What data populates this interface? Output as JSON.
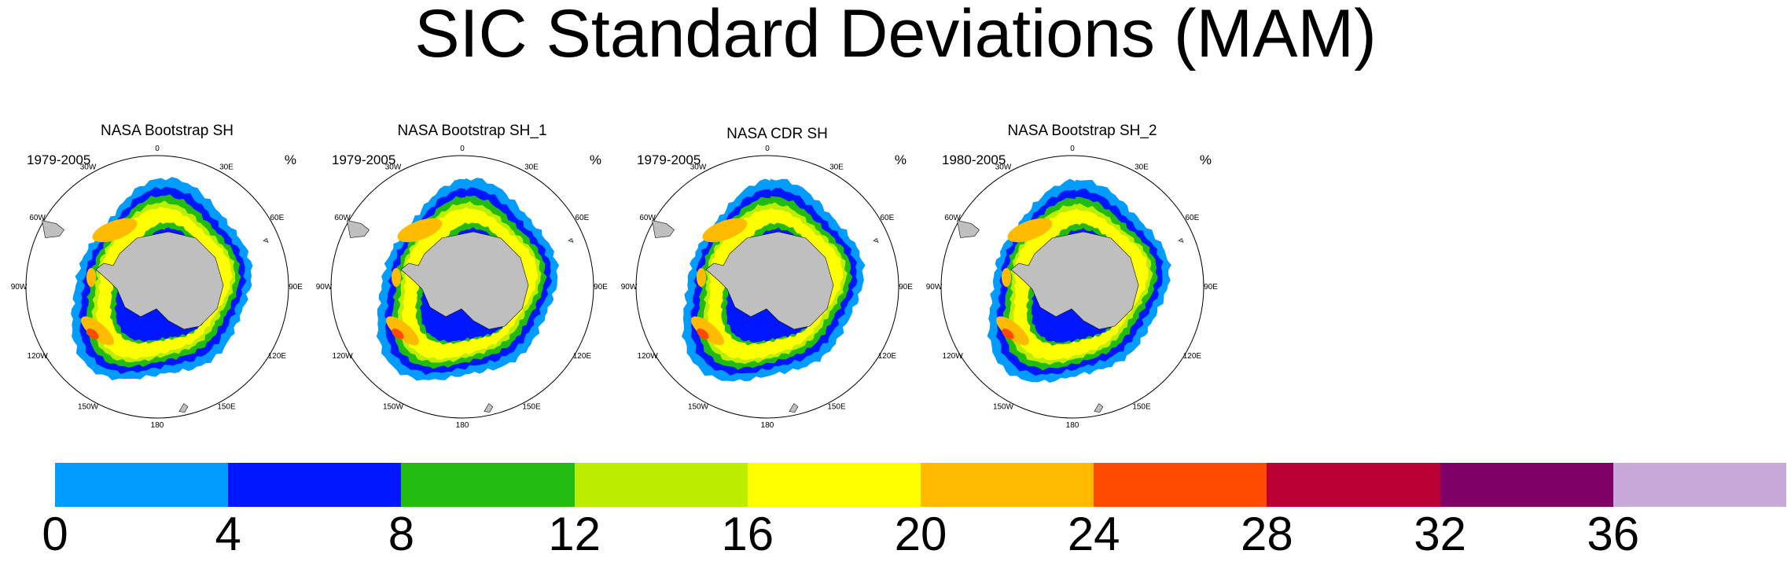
{
  "title": "SIC Standard Deviations (MAM)",
  "panels": [
    {
      "title": "NASA Bootstrap SH",
      "period": "1979-2005",
      "units": "%"
    },
    {
      "title": "NASA Bootstrap SH_1",
      "period": "1979-2005",
      "units": "%"
    },
    {
      "title": "NASA CDR SH",
      "period": "1979-2005",
      "units": "%"
    },
    {
      "title": "NASA Bootstrap SH_2",
      "period": "1980-2005",
      "units": "%"
    }
  ],
  "lon_labels": [
    "0",
    "30E",
    "60E",
    "90E",
    "120E",
    "150E",
    "180",
    "150W",
    "120W",
    "90W",
    "60W",
    "30W"
  ],
  "colorbar": {
    "colors": [
      "#009cff",
      "#0016ff",
      "#22bb11",
      "#bbee00",
      "#ffff00",
      "#ffbb00",
      "#ff4a00",
      "#bb0033",
      "#7f0066",
      "#c8a8d8"
    ],
    "labels": [
      "0",
      "4",
      "8",
      "12",
      "16",
      "20",
      "24",
      "28",
      "32",
      "36"
    ]
  },
  "map_colors": {
    "land": "#bfbfbf",
    "ocean": "#ffffff"
  }
}
